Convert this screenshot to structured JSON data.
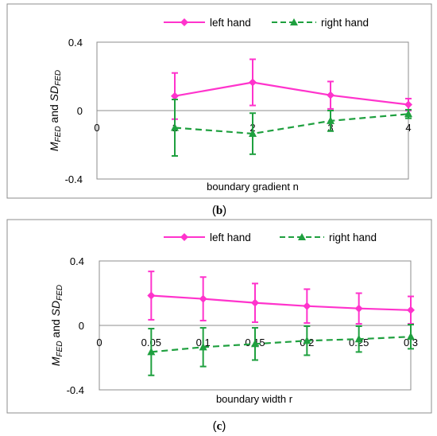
{
  "chart_data": [
    {
      "type": "line",
      "panel_label": "b",
      "xlabel": "boundary gradient n",
      "ylabel": "M_FED and SD_FED",
      "x_ticks": [
        "0",
        "1",
        "2",
        "3",
        "4"
      ],
      "x": [
        1,
        2,
        3,
        4
      ],
      "xlim": [
        0,
        4
      ],
      "ylim": [
        -0.4,
        0.4
      ],
      "y_ticks": [
        "0.4",
        "0",
        "-0.4"
      ],
      "legend_position": "top",
      "series": [
        {
          "name": "left hand",
          "color": "#ff33cc",
          "marker": "diamond",
          "line": "solid",
          "values": [
            0.085,
            0.165,
            0.09,
            0.035
          ],
          "error": [
            0.135,
            0.135,
            0.08,
            0.035
          ]
        },
        {
          "name": "right hand",
          "color": "#1fa03f",
          "marker": "triangle",
          "line": "dashed",
          "values": [
            -0.1,
            -0.135,
            -0.06,
            -0.02
          ],
          "error": [
            0.165,
            0.12,
            0.06,
            0.025
          ]
        }
      ]
    },
    {
      "type": "line",
      "panel_label": "c",
      "xlabel": "boundary width r",
      "ylabel": "M_FED and SD_FED",
      "x_ticks": [
        "0",
        "0.05",
        "0.1",
        "0.15",
        "0.2",
        "0.25",
        "0.3"
      ],
      "x": [
        0.05,
        0.1,
        0.15,
        0.2,
        0.25,
        0.3
      ],
      "xlim": [
        0,
        0.3
      ],
      "ylim": [
        -0.4,
        0.4
      ],
      "y_ticks": [
        "0.4",
        "0",
        "-0.4"
      ],
      "legend_position": "top",
      "series": [
        {
          "name": "left hand",
          "color": "#ff33cc",
          "marker": "diamond",
          "line": "solid",
          "values": [
            0.185,
            0.165,
            0.14,
            0.12,
            0.105,
            0.095
          ],
          "error": [
            0.15,
            0.135,
            0.12,
            0.105,
            0.095,
            0.085
          ]
        },
        {
          "name": "right hand",
          "color": "#1fa03f",
          "marker": "triangle",
          "line": "dashed",
          "values": [
            -0.165,
            -0.135,
            -0.115,
            -0.095,
            -0.085,
            -0.07
          ],
          "error": [
            0.145,
            0.12,
            0.1,
            0.09,
            0.08,
            0.075
          ]
        }
      ]
    }
  ]
}
